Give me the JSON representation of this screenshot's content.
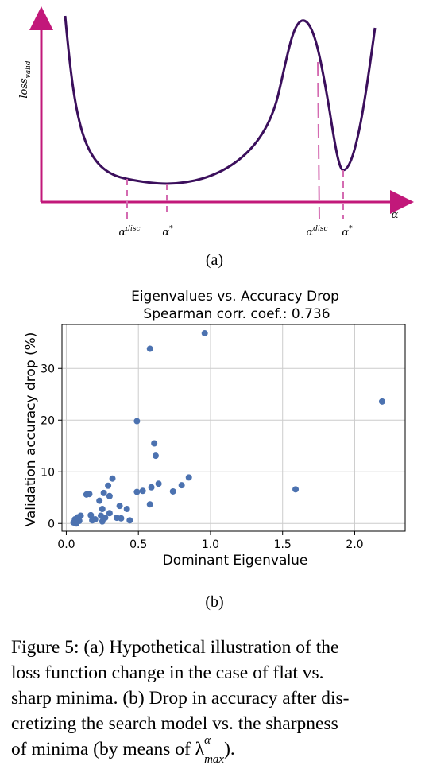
{
  "panel_a": {
    "ylabel": "loss_valid",
    "xlabel": "α",
    "markers": [
      "α^disc",
      "α*",
      "α^disc",
      "α*"
    ],
    "sublabel": "(a)"
  },
  "panel_b": {
    "sublabel": "(b)"
  },
  "caption": {
    "lines": [
      "Figure 5: (a) Hypothetical illustration of the",
      "loss function change in the case of flat vs.",
      "sharp minima. (b) Drop in accuracy after dis-",
      "cretizing the search model vs. the sharpness",
      "of minima (by means of λ"
    ],
    "math_sup": "α",
    "math_sub": "max",
    "tail": ")."
  },
  "chart_data": [
    {
      "type": "line",
      "title": "",
      "xlabel": "α",
      "ylabel": "loss_valid",
      "description_marks": [
        "α^disc",
        "α*",
        "α^disc",
        "α*"
      ],
      "axis_ticks": "none"
    },
    {
      "type": "scatter",
      "title": "Eigenvalues vs. Accuracy Drop",
      "subtitle": "Spearman corr. coef.: 0.736",
      "xlabel": "Dominant Eigenvalue",
      "ylabel": "Validation accuracy drop (%)",
      "xlim": [
        -0.03,
        2.35
      ],
      "ylim": [
        -1.5,
        38.5
      ],
      "xticks": [
        "0.0",
        "0.5",
        "1.0",
        "1.5",
        "2.0"
      ],
      "xtick_values": [
        0.0,
        0.5,
        1.0,
        1.5,
        2.0
      ],
      "yticks": [
        "0",
        "10",
        "20",
        "30"
      ],
      "ytick_values": [
        0,
        10,
        20,
        30
      ],
      "grid": true,
      "color": "#4c72b0",
      "points": [
        [
          0.05,
          0.2
        ],
        [
          0.06,
          0.8
        ],
        [
          0.07,
          0.4
        ],
        [
          0.08,
          1.2
        ],
        [
          0.07,
          0.0
        ],
        [
          0.09,
          0.5
        ],
        [
          0.1,
          1.5
        ],
        [
          0.14,
          5.6
        ],
        [
          0.16,
          5.7
        ],
        [
          0.17,
          1.6
        ],
        [
          0.18,
          0.6
        ],
        [
          0.2,
          0.8
        ],
        [
          0.23,
          4.4
        ],
        [
          0.24,
          1.5
        ],
        [
          0.25,
          2.8
        ],
        [
          0.26,
          5.9
        ],
        [
          0.25,
          0.4
        ],
        [
          0.27,
          1.1
        ],
        [
          0.29,
          7.3
        ],
        [
          0.3,
          5.3
        ],
        [
          0.3,
          2.0
        ],
        [
          0.32,
          8.7
        ],
        [
          0.35,
          1.1
        ],
        [
          0.37,
          3.4
        ],
        [
          0.38,
          1.0
        ],
        [
          0.42,
          2.8
        ],
        [
          0.44,
          0.6
        ],
        [
          0.49,
          19.8
        ],
        [
          0.49,
          6.1
        ],
        [
          0.53,
          6.3
        ],
        [
          0.58,
          33.8
        ],
        [
          0.58,
          3.7
        ],
        [
          0.59,
          7.0
        ],
        [
          0.61,
          15.5
        ],
        [
          0.62,
          13.1
        ],
        [
          0.64,
          7.7
        ],
        [
          0.74,
          6.2
        ],
        [
          0.8,
          7.4
        ],
        [
          0.85,
          8.9
        ],
        [
          0.96,
          36.8
        ],
        [
          1.59,
          6.6
        ],
        [
          2.19,
          23.6
        ]
      ]
    }
  ]
}
